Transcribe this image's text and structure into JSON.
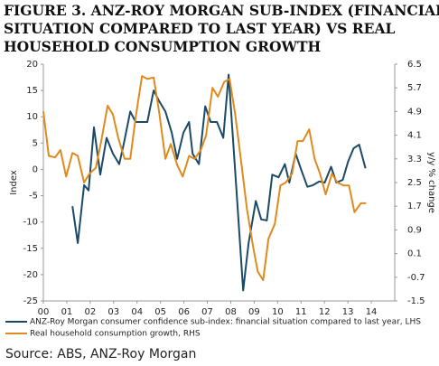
{
  "chart_data": {
    "type": "line",
    "title": [
      "FIGURE 3. ANZ-ROY MORGAN SUB-INDEX (FINANCIAL",
      "SITUATION COMPARED TO LAST YEAR) VS REAL",
      "HOUSEHOLD CONSUMPTION GROWTH"
    ],
    "y_label": "Index",
    "y2_label": "y/y % change",
    "xlim": [
      2000,
      2015
    ],
    "xticks": [
      {
        "value": 2000,
        "label": "00"
      },
      {
        "value": 2001,
        "label": "01"
      },
      {
        "value": 2002,
        "label": "02"
      },
      {
        "value": 2003,
        "label": "03"
      },
      {
        "value": 2004,
        "label": "04"
      },
      {
        "value": 2005,
        "label": "05"
      },
      {
        "value": 2006,
        "label": "06"
      },
      {
        "value": 2007,
        "label": "07"
      },
      {
        "value": 2008,
        "label": "08"
      },
      {
        "value": 2009,
        "label": "09"
      },
      {
        "value": 2010,
        "label": "10"
      },
      {
        "value": 2011,
        "label": "11"
      },
      {
        "value": 2012,
        "label": "12"
      },
      {
        "value": 2013,
        "label": "13"
      },
      {
        "value": 2014,
        "label": "14"
      }
    ],
    "ylim": [
      -25,
      20
    ],
    "yticks": [
      20,
      15,
      10,
      5,
      0,
      -5,
      -10,
      -15,
      -20,
      -25
    ],
    "y2lim": [
      -1.5,
      6.5
    ],
    "y2ticks": [
      6.5,
      5.7,
      4.9,
      4.1,
      3.3,
      2.5,
      1.7,
      0.9,
      0.1,
      -0.7,
      -1.5
    ],
    "series": [
      {
        "name": "ANZ-Roy Morgan consumer confidence sub-index: financial situation compared to last year, LHS",
        "color": "#1a4a68",
        "x": [
          2001.24,
          2001.47,
          2001.74,
          2001.93,
          2002.16,
          2002.43,
          2002.7,
          2002.97,
          2003.24,
          2003.44,
          2003.71,
          2003.94,
          2004.21,
          2004.44,
          2004.71,
          2004.94,
          2005.21,
          2005.48,
          2005.71,
          2005.98,
          2006.22,
          2006.37,
          2006.64,
          2006.91,
          2007.14,
          2007.41,
          2007.68,
          2007.91,
          2008.26,
          2008.53,
          2008.76,
          2009.07,
          2009.3,
          2009.54,
          2009.77,
          2010.04,
          2010.31,
          2010.5,
          2010.77,
          2011.0,
          2011.27,
          2011.51,
          2011.78,
          2012.01,
          2012.28,
          2012.51,
          2012.78,
          2013.01,
          2013.24,
          2013.48,
          2013.75
        ],
        "values": [
          -7,
          -14,
          -3,
          -4,
          8,
          -1,
          6,
          3,
          1,
          5,
          11,
          9,
          9,
          9,
          15,
          13,
          11,
          7,
          2,
          7,
          9,
          3,
          1,
          12,
          9,
          9,
          6,
          18,
          -5,
          -23,
          -14,
          -6,
          -9.5,
          -9.7,
          -1,
          -1.5,
          1,
          -2.5,
          3,
          0,
          -3.3,
          -3,
          -2.3,
          -2.5,
          0.5,
          -2.5,
          -2,
          1.5,
          4,
          4.7,
          0.2
        ]
      },
      {
        "name": "Real household consumption growth, RHS",
        "color": "#e08a1e",
        "axis": "y2",
        "x": [
          2000.0,
          2000.23,
          2000.5,
          2000.73,
          2000.97,
          2001.24,
          2001.47,
          2001.74,
          2001.97,
          2002.24,
          2002.47,
          2002.74,
          2002.97,
          2003.2,
          2003.47,
          2003.71,
          2003.94,
          2004.21,
          2004.44,
          2004.71,
          2004.94,
          2005.21,
          2005.44,
          2005.71,
          2005.95,
          2006.22,
          2006.45,
          2006.72,
          2006.95,
          2007.22,
          2007.45,
          2007.72,
          2007.95,
          2008.19,
          2008.46,
          2008.69,
          2008.96,
          2009.15,
          2009.38,
          2009.61,
          2009.88,
          2010.12,
          2010.35,
          2010.62,
          2010.85,
          2011.08,
          2011.35,
          2011.58,
          2011.81,
          2012.05,
          2012.32,
          2012.55,
          2012.82,
          2013.05,
          2013.28,
          2013.55,
          2013.78
        ],
        "values": [
          4.9,
          3.4,
          3.35,
          3.6,
          2.7,
          3.5,
          3.4,
          2.5,
          2.8,
          3.0,
          3.9,
          5.1,
          4.8,
          4.0,
          3.3,
          3.3,
          4.7,
          6.1,
          6.0,
          6.05,
          4.9,
          3.3,
          3.8,
          3.1,
          2.7,
          3.4,
          3.3,
          3.6,
          4.1,
          5.7,
          5.4,
          5.9,
          6.0,
          4.8,
          3.1,
          1.6,
          0.3,
          -0.5,
          -0.8,
          0.6,
          1.1,
          2.4,
          2.5,
          2.8,
          3.9,
          3.9,
          4.3,
          3.3,
          2.8,
          2.1,
          2.8,
          2.5,
          2.4,
          2.4,
          1.5,
          1.8,
          1.8
        ]
      }
    ]
  },
  "source": "Source: ABS, ANZ-Roy Morgan"
}
